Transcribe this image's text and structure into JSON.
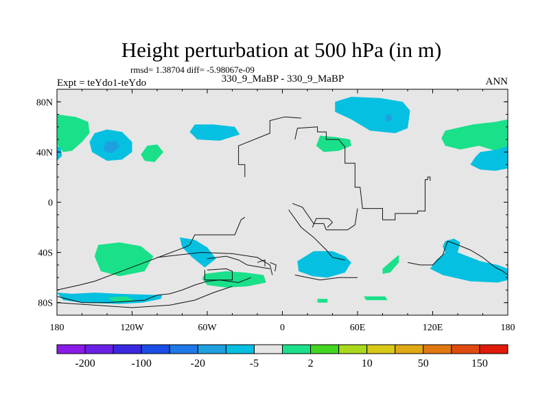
{
  "chart_data": {
    "type": "heatmap",
    "title": "Height perturbation at 500 hPa (in m)",
    "stats": "rmsd= 1.38704 diff= -5.98067e-09",
    "left_string": "Expt = teYdo1-teYdo",
    "center_string": "330_9_MaBP - 330_9_MaBP",
    "right_string": "ANN",
    "xlabel": "",
    "ylabel": "",
    "xlim": [
      -180,
      180
    ],
    "ylim": [
      -90,
      90
    ],
    "x_ticks": [
      {
        "value": -180,
        "label": "180"
      },
      {
        "value": -120,
        "label": "120W"
      },
      {
        "value": -60,
        "label": "60W"
      },
      {
        "value": 0,
        "label": "0"
      },
      {
        "value": 60,
        "label": "60E"
      },
      {
        "value": 120,
        "label": "120E"
      },
      {
        "value": 180,
        "label": "180"
      }
    ],
    "y_ticks": [
      {
        "value": 80,
        "label": "80N"
      },
      {
        "value": 40,
        "label": "40N"
      },
      {
        "value": 0,
        "label": "0"
      },
      {
        "value": -40,
        "label": "40S"
      },
      {
        "value": -80,
        "label": "80S"
      }
    ],
    "colorbar": {
      "colors": [
        "#8a1be8",
        "#6a20e6",
        "#3a28e0",
        "#1a4ee6",
        "#1f79e8",
        "#1ea0e0",
        "#05c0e0",
        "#e6e6e6",
        "#1ae08a",
        "#44d620",
        "#aad81c",
        "#d8c818",
        "#e0a814",
        "#e07812",
        "#e04a10",
        "#e01a0a"
      ],
      "labels": [
        {
          "after_box": 1,
          "text": "-200"
        },
        {
          "after_box": 3,
          "text": "-100"
        },
        {
          "after_box": 5,
          "text": "-20"
        },
        {
          "after_box": 7,
          "text": "-5"
        },
        {
          "after_box": 9,
          "text": "2"
        },
        {
          "after_box": 11,
          "text": "10"
        },
        {
          "after_box": 13,
          "text": "50"
        },
        {
          "after_box": 15,
          "text": "150"
        }
      ]
    },
    "regions": [
      {
        "level": "-5",
        "color": "#05c0e0",
        "points": [
          [
            -150,
            55
          ],
          [
            -140,
            58
          ],
          [
            -128,
            56
          ],
          [
            -120,
            48
          ],
          [
            -120,
            40
          ],
          [
            -128,
            34
          ],
          [
            -140,
            33
          ],
          [
            -152,
            40
          ],
          [
            -154,
            48
          ]
        ]
      },
      {
        "level": "-20",
        "color": "#1ea0e0",
        "points": [
          [
            -141,
            48
          ],
          [
            -133,
            49
          ],
          [
            -130,
            44
          ],
          [
            -136,
            39
          ],
          [
            -143,
            41
          ]
        ]
      },
      {
        "level": "2",
        "color": "#1ae08a",
        "points": [
          [
            -180,
            70
          ],
          [
            -165,
            68
          ],
          [
            -155,
            64
          ],
          [
            -154,
            55
          ],
          [
            -160,
            48
          ],
          [
            -168,
            41
          ],
          [
            -175,
            40
          ],
          [
            -180,
            46
          ]
        ]
      },
      {
        "level": "-5",
        "color": "#05c0e0",
        "points": [
          [
            -180,
            45
          ],
          [
            -177,
            43
          ],
          [
            -176,
            37
          ],
          [
            -180,
            33
          ]
        ]
      },
      {
        "level": "2",
        "color": "#1ae08a",
        "points": [
          [
            -108,
            45
          ],
          [
            -100,
            46
          ],
          [
            -95,
            40
          ],
          [
            -102,
            32
          ],
          [
            -110,
            33
          ],
          [
            -113,
            38
          ]
        ]
      },
      {
        "level": "-5",
        "color": "#05c0e0",
        "points": [
          [
            -70,
            62
          ],
          [
            -55,
            62
          ],
          [
            -38,
            60
          ],
          [
            -34,
            54
          ],
          [
            -50,
            49
          ],
          [
            -68,
            50
          ],
          [
            -74,
            56
          ]
        ]
      },
      {
        "level": "2",
        "color": "#1ae08a",
        "points": [
          [
            30,
            53
          ],
          [
            42,
            52
          ],
          [
            54,
            50
          ],
          [
            55,
            45
          ],
          [
            45,
            41
          ],
          [
            33,
            40
          ],
          [
            27,
            45
          ]
        ]
      },
      {
        "level": "-5",
        "color": "#05c0e0",
        "points": [
          [
            42,
            80
          ],
          [
            55,
            84
          ],
          [
            78,
            83
          ],
          [
            96,
            80
          ],
          [
            102,
            73
          ],
          [
            100,
            59
          ],
          [
            90,
            55
          ],
          [
            70,
            57
          ],
          [
            55,
            66
          ],
          [
            42,
            72
          ]
        ]
      },
      {
        "level": "-20",
        "color": "#1ea0e0",
        "points": [
          [
            82,
            69
          ],
          [
            86,
            70
          ],
          [
            88,
            66
          ],
          [
            83,
            64
          ]
        ]
      },
      {
        "level": "2",
        "color": "#1ae08a",
        "points": [
          [
            130,
            57
          ],
          [
            152,
            62
          ],
          [
            170,
            64
          ],
          [
            180,
            66
          ],
          [
            180,
            38
          ],
          [
            170,
            41
          ],
          [
            157,
            45
          ],
          [
            142,
            42
          ],
          [
            130,
            45
          ],
          [
            127,
            51
          ]
        ]
      },
      {
        "level": "-5",
        "color": "#05c0e0",
        "points": [
          [
            158,
            40
          ],
          [
            172,
            42
          ],
          [
            180,
            45
          ],
          [
            180,
            27
          ],
          [
            170,
            25
          ],
          [
            158,
            26
          ],
          [
            150,
            30
          ],
          [
            154,
            36
          ]
        ]
      },
      {
        "level": "2",
        "color": "#1ae08a",
        "points": [
          [
            -147,
            -34
          ],
          [
            -130,
            -32
          ],
          [
            -113,
            -35
          ],
          [
            -103,
            -43
          ],
          [
            -110,
            -55
          ],
          [
            -130,
            -59
          ],
          [
            -145,
            -55
          ],
          [
            -150,
            -43
          ]
        ]
      },
      {
        "level": "-5",
        "color": "#05c0e0",
        "points": [
          [
            -82,
            -28
          ],
          [
            -70,
            -30
          ],
          [
            -60,
            -36
          ],
          [
            -53,
            -45
          ],
          [
            -62,
            -52
          ],
          [
            -72,
            -44
          ],
          [
            -80,
            -36
          ]
        ]
      },
      {
        "level": "2",
        "color": "#1ae08a",
        "points": [
          [
            -62,
            -57
          ],
          [
            -45,
            -55
          ],
          [
            -30,
            -56
          ],
          [
            -15,
            -58
          ],
          [
            -13,
            -64
          ],
          [
            -28,
            -67
          ],
          [
            -45,
            -68
          ],
          [
            -60,
            -66
          ],
          [
            -64,
            -61
          ]
        ]
      },
      {
        "level": "-5",
        "color": "#05c0e0",
        "points": [
          [
            -180,
            -72
          ],
          [
            -168,
            -73
          ],
          [
            -150,
            -72
          ],
          [
            -130,
            -73
          ],
          [
            -96,
            -74
          ],
          [
            -97,
            -77
          ],
          [
            -112,
            -80
          ],
          [
            -130,
            -81
          ],
          [
            -160,
            -80
          ],
          [
            -175,
            -78
          ]
        ]
      },
      {
        "level": "2",
        "color": "#1ae08a",
        "points": [
          [
            -140,
            -76
          ],
          [
            -125,
            -75
          ],
          [
            -118,
            -78
          ],
          [
            -132,
            -80
          ]
        ]
      },
      {
        "level": "-5",
        "color": "#05c0e0",
        "points": [
          [
            12,
            -47
          ],
          [
            25,
            -39
          ],
          [
            40,
            -39
          ],
          [
            50,
            -43
          ],
          [
            55,
            -48
          ],
          [
            50,
            -56
          ],
          [
            36,
            -60
          ],
          [
            24,
            -59
          ],
          [
            13,
            -55
          ]
        ]
      },
      {
        "level": "2",
        "color": "#1ae08a",
        "points": [
          [
            80,
            -53
          ],
          [
            88,
            -46
          ],
          [
            93,
            -42
          ],
          [
            93,
            -48
          ],
          [
            86,
            -56
          ],
          [
            80,
            -57
          ]
        ]
      },
      {
        "level": "-5",
        "color": "#05c0e0",
        "points": [
          [
            130,
            -31
          ],
          [
            137,
            -29
          ],
          [
            142,
            -32
          ],
          [
            140,
            -40
          ],
          [
            158,
            -47
          ],
          [
            172,
            -50
          ],
          [
            180,
            -53
          ],
          [
            180,
            -62
          ],
          [
            172,
            -64
          ],
          [
            150,
            -63
          ],
          [
            128,
            -58
          ],
          [
            118,
            -53
          ],
          [
            123,
            -46
          ],
          [
            130,
            -40
          ],
          [
            128,
            -35
          ]
        ]
      },
      {
        "level": "2",
        "color": "#1ae08a",
        "points": [
          [
            28,
            -77
          ],
          [
            36,
            -77
          ],
          [
            36,
            -80
          ],
          [
            28,
            -80
          ]
        ]
      },
      {
        "level": "2",
        "color": "#1ae08a",
        "points": [
          [
            65,
            -75
          ],
          [
            82,
            -75
          ],
          [
            84,
            -78
          ],
          [
            67,
            -78
          ]
        ]
      }
    ],
    "coastlines": [
      [
        [
          10,
          50
        ],
        [
          12,
          59
        ],
        [
          28,
          60
        ],
        [
          28,
          56
        ],
        [
          35,
          56
        ],
        [
          35,
          50
        ],
        [
          45,
          50
        ],
        [
          50,
          44
        ],
        [
          50,
          31
        ],
        [
          58,
          31
        ],
        [
          58,
          12
        ],
        [
          62,
          12
        ],
        [
          64,
          -5
        ],
        [
          80,
          -5
        ],
        [
          80,
          -14
        ],
        [
          90,
          -14
        ],
        [
          90,
          -9
        ],
        [
          108,
          -9
        ],
        [
          108,
          -7
        ],
        [
          114,
          -7
        ],
        [
          114,
          18
        ],
        [
          116,
          18
        ],
        [
          116,
          20
        ],
        [
          118,
          20
        ],
        [
          118,
          17
        ]
      ],
      [
        [
          60,
          -5
        ],
        [
          58,
          -18
        ],
        [
          52,
          -22
        ],
        [
          44,
          -22
        ],
        [
          35,
          -22
        ],
        [
          33,
          -17
        ],
        [
          25,
          -17
        ],
        [
          16,
          -4
        ],
        [
          8,
          -1
        ]
      ],
      [
        [
          -30,
          -12
        ],
        [
          -33,
          -14
        ],
        [
          -38,
          -26
        ],
        [
          -70,
          -26
        ],
        [
          -74,
          -34
        ],
        [
          -78,
          -36
        ],
        [
          -110,
          -48
        ],
        [
          -150,
          -63
        ],
        [
          -162,
          -66
        ],
        [
          -180,
          -70
        ]
      ],
      [
        [
          -30,
          20
        ],
        [
          -30,
          30
        ],
        [
          -35,
          30
        ],
        [
          -35,
          45
        ],
        [
          -10,
          55
        ],
        [
          -10,
          65
        ],
        [
          2,
          68
        ],
        [
          15,
          67
        ]
      ],
      [
        [
          5,
          -6
        ],
        [
          15,
          -20
        ],
        [
          25,
          -28
        ],
        [
          35,
          -38
        ],
        [
          40,
          -44
        ],
        [
          50,
          -46
        ]
      ],
      [
        [
          -60,
          -45
        ],
        [
          -45,
          -43
        ],
        [
          -35,
          -46
        ],
        [
          -28,
          -50
        ],
        [
          -10,
          -53
        ]
      ],
      [
        [
          -60,
          -54
        ],
        [
          -45,
          -53
        ],
        [
          -40,
          -55
        ],
        [
          -40,
          -62
        ],
        [
          -62,
          -62
        ],
        [
          -62,
          -54
        ]
      ],
      [
        [
          -100,
          -44
        ],
        [
          -65,
          -40
        ],
        [
          -40,
          -41
        ],
        [
          -20,
          -44
        ],
        [
          -10,
          -50
        ],
        [
          -8,
          -58
        ]
      ],
      [
        [
          -180,
          -75
        ],
        [
          -160,
          -80
        ],
        [
          -140,
          -80
        ],
        [
          -110,
          -78
        ],
        [
          -100,
          -74
        ],
        [
          -90,
          -73
        ],
        [
          -80,
          -70
        ],
        [
          -70,
          -66
        ],
        [
          -60,
          -63
        ],
        [
          -50,
          -62
        ],
        [
          -35,
          -64
        ],
        [
          -25,
          -60
        ]
      ],
      [
        [
          -180,
          -80
        ],
        [
          -150,
          -82
        ],
        [
          -120,
          -84
        ],
        [
          -90,
          -82
        ],
        [
          -70,
          -78
        ],
        [
          -55,
          -72
        ],
        [
          -40,
          -67
        ]
      ],
      [
        [
          10,
          -58
        ],
        [
          30,
          -62
        ],
        [
          45,
          -60
        ],
        [
          60,
          -60
        ]
      ],
      [
        [
          100,
          -48
        ],
        [
          110,
          -50
        ],
        [
          120,
          -50
        ],
        [
          128,
          -42
        ],
        [
          132,
          -31
        ],
        [
          140,
          -34
        ],
        [
          150,
          -38
        ],
        [
          160,
          -44
        ],
        [
          170,
          -52
        ],
        [
          176,
          -55
        ],
        [
          180,
          -58
        ]
      ],
      [
        [
          -10,
          -48
        ],
        [
          -5,
          -50
        ],
        [
          -6,
          -55
        ]
      ],
      [
        [
          24,
          -20
        ],
        [
          27,
          -13
        ],
        [
          37,
          -13
        ],
        [
          40,
          -16
        ],
        [
          36,
          -20
        ]
      ],
      [
        [
          -20,
          -48
        ],
        [
          -14,
          -46
        ],
        [
          -14,
          -51
        ]
      ]
    ]
  }
}
